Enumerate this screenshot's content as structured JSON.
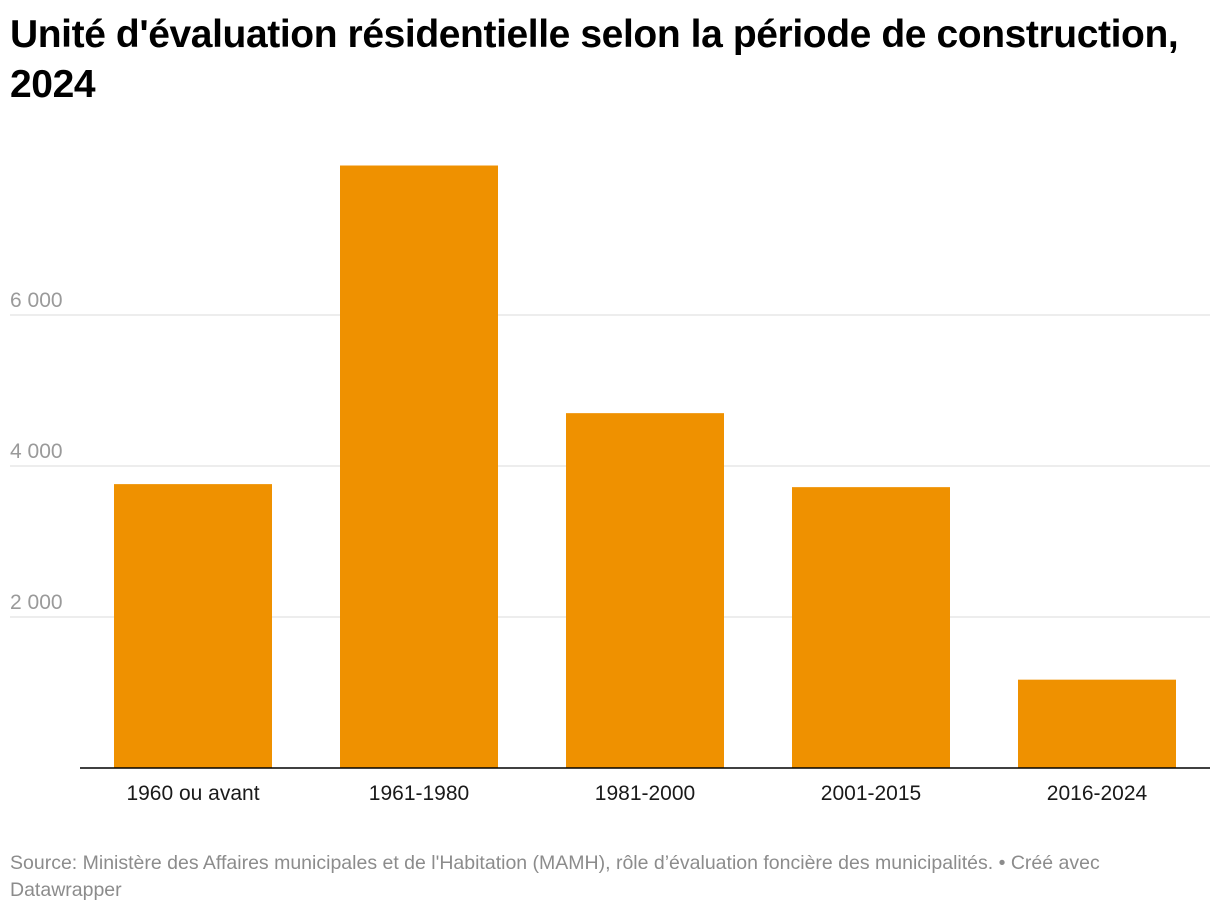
{
  "chart_data": {
    "type": "bar",
    "title": "Unité d'évaluation résidentielle selon la période de construction, 2024",
    "categories": [
      "1960 ou avant",
      "1961-1980",
      "1981-2000",
      "2001-2015",
      "2016-2024"
    ],
    "values": [
      3760,
      7980,
      4700,
      3720,
      1170
    ],
    "xlabel": "",
    "ylabel": "",
    "ylim": [
      0,
      8000
    ],
    "y_ticks": [
      {
        "value": 2000,
        "label": "2 000"
      },
      {
        "value": 4000,
        "label": "4 000"
      },
      {
        "value": 6000,
        "label": "6 000"
      }
    ],
    "grid": true,
    "bar_color": "#ef9100",
    "gridline_color": "#e2e2e2",
    "axis_color": "#000000"
  },
  "footer": {
    "source_text": "Source: Ministère des Affaires municipales et de l'Habitation (MAMH), rôle d’évaluation foncière des municipalités. • Créé avec Datawrapper"
  }
}
